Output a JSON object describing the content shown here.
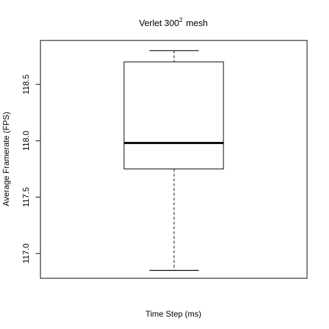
{
  "chart_data": {
    "type": "boxplot",
    "title": "Verlet  300",
    "title_superscript": "2",
    "title_suffix": "mesh",
    "xlabel": "Time Step (ms)",
    "ylabel": "Average Framerate (FPS)",
    "ylim": [
      116.78,
      118.89
    ],
    "yticks": [
      117.0,
      117.5,
      118.0,
      118.5
    ],
    "ytick_labels": [
      "117.0",
      "117.5",
      "118.0",
      "118.5"
    ],
    "grid": false,
    "legend": "none",
    "box": {
      "whisker_low": 116.85,
      "q1": 117.75,
      "median": 117.98,
      "q3": 118.7,
      "whisker_high": 118.8
    }
  }
}
